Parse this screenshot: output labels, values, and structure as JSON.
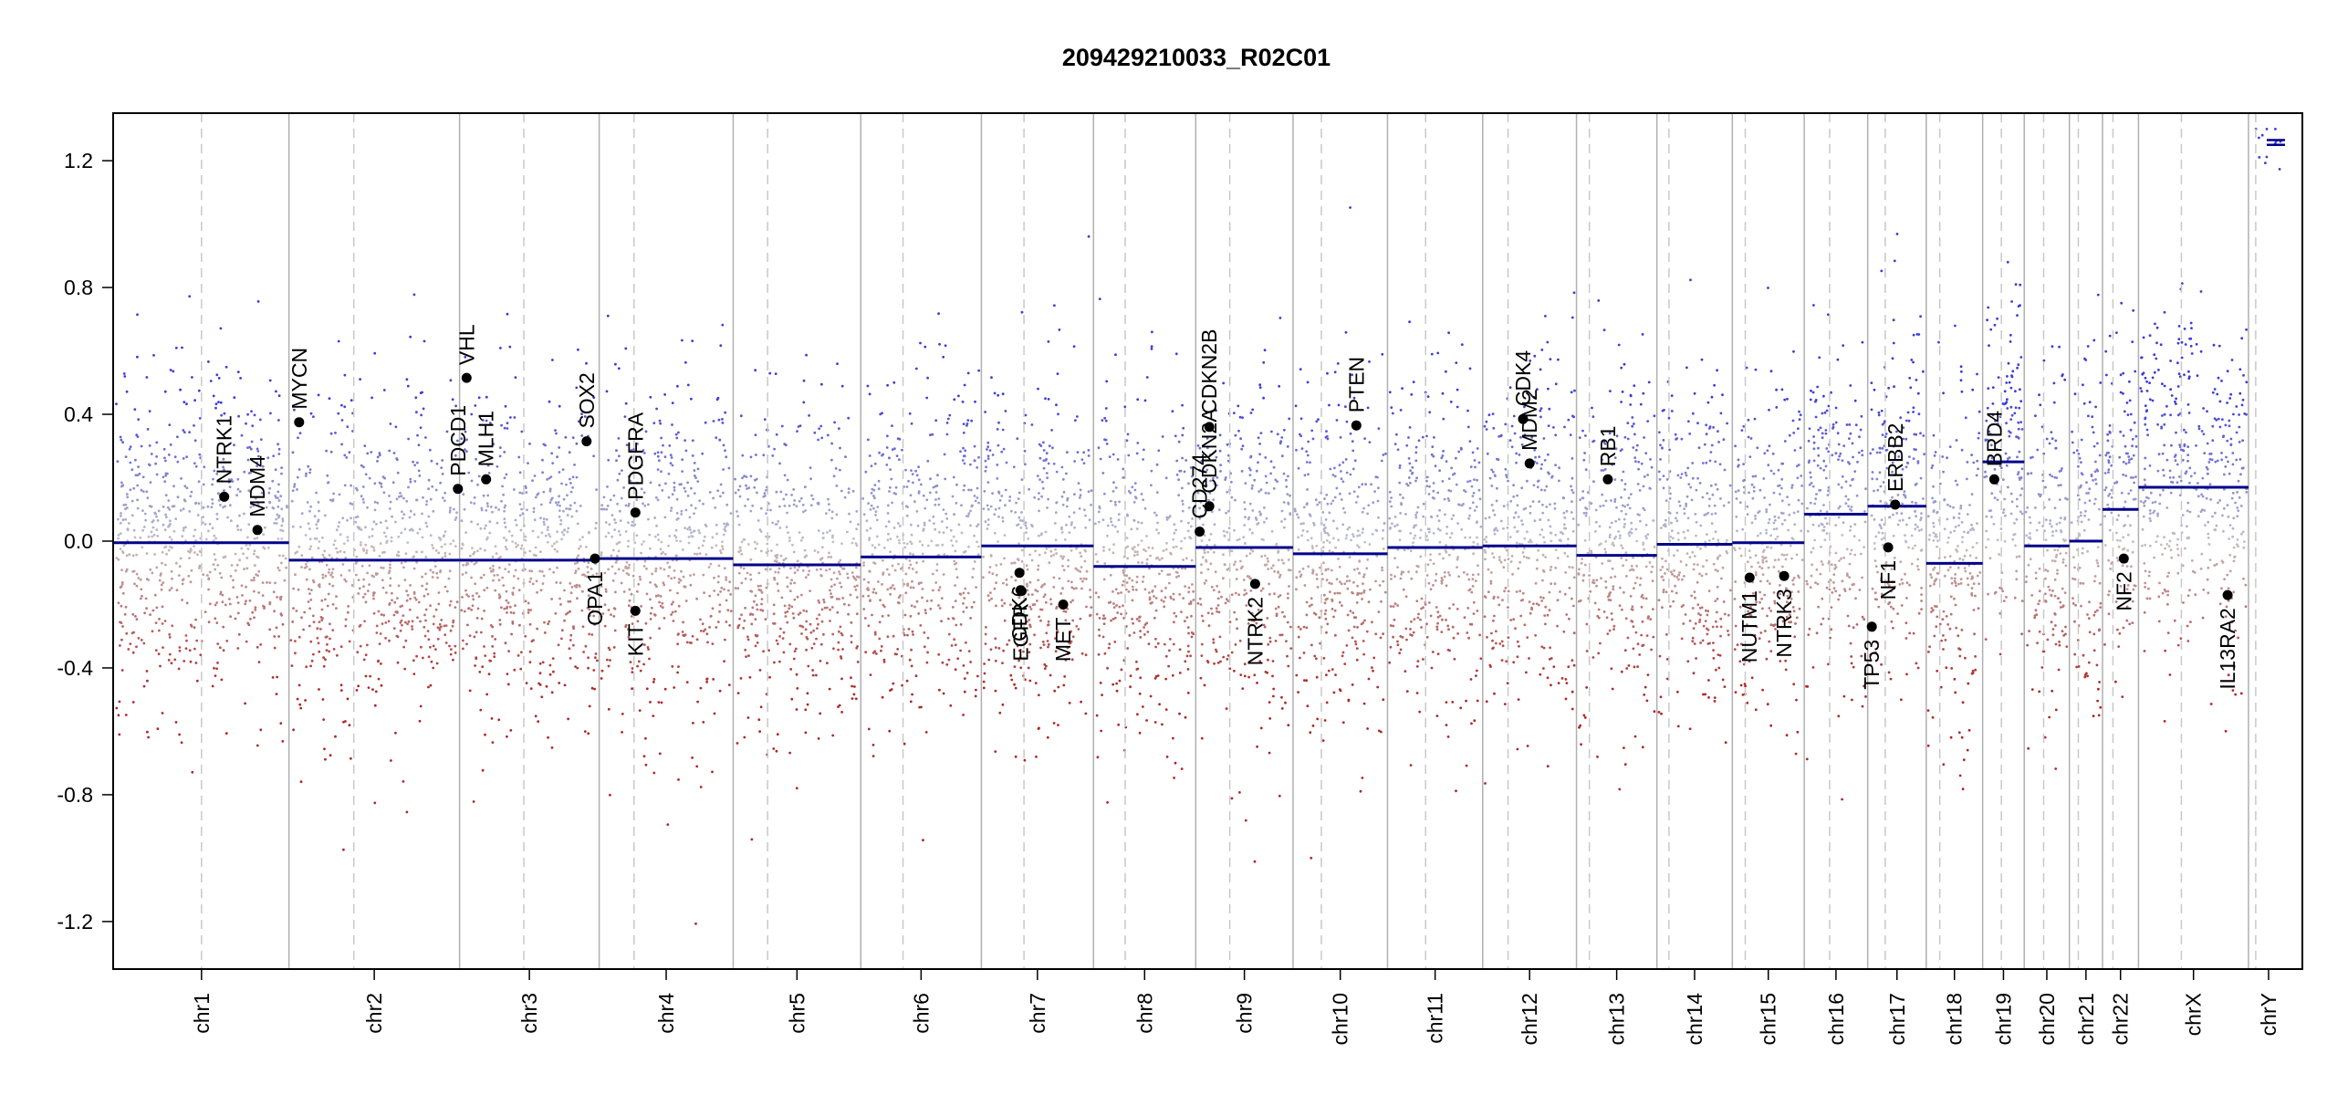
{
  "chart_data": {
    "type": "scatter",
    "title": "209429210033_R02C01",
    "xlabel": "",
    "ylabel": "",
    "ylim": [
      -1.35,
      1.35
    ],
    "yticks": [
      "1.2",
      "0.8",
      "0.4",
      "0.0",
      "-0.4",
      "-0.8",
      "-1.2"
    ],
    "ytick_values": [
      1.2,
      0.8,
      0.4,
      0.0,
      -0.4,
      -0.8,
      -1.2
    ],
    "grid": false,
    "legend": "none",
    "colors": {
      "gain": "#3b3bd4",
      "loss": "#b22222",
      "neutral": "#aaaaaa",
      "segment": "#00008b",
      "boundary": "#aaaaaa",
      "gene": "#000000"
    },
    "chromosomes": [
      {
        "name": "chr1",
        "length": 248,
        "centromere": 0.5,
        "segment": -0.005
      },
      {
        "name": "chr2",
        "length": 242,
        "centromere": 0.38,
        "segment": -0.06
      },
      {
        "name": "chr3",
        "length": 198,
        "centromere": 0.46,
        "segment": -0.06
      },
      {
        "name": "chr4",
        "length": 190,
        "centromere": 0.26,
        "segment": -0.055
      },
      {
        "name": "chr5",
        "length": 181,
        "centromere": 0.27,
        "segment": -0.075
      },
      {
        "name": "chr6",
        "length": 171,
        "centromere": 0.35,
        "segment": -0.05
      },
      {
        "name": "chr7",
        "length": 159,
        "centromere": 0.38,
        "segment": -0.015
      },
      {
        "name": "chr8",
        "length": 145,
        "centromere": 0.31,
        "segment": -0.08
      },
      {
        "name": "chr9",
        "length": 138,
        "centromere": 0.35,
        "segment": -0.02
      },
      {
        "name": "chr10",
        "length": 134,
        "centromere": 0.3,
        "segment": -0.04
      },
      {
        "name": "chr11",
        "length": 135,
        "centromere": 0.4,
        "segment": -0.02
      },
      {
        "name": "chr12",
        "length": 133,
        "centromere": 0.27,
        "segment": -0.015
      },
      {
        "name": "chr13",
        "length": 114,
        "centromere": 0.16,
        "segment": -0.045
      },
      {
        "name": "chr14",
        "length": 107,
        "centromere": 0.16,
        "segment": -0.01
      },
      {
        "name": "chr15",
        "length": 102,
        "centromere": 0.18,
        "segment": -0.005
      },
      {
        "name": "chr16",
        "length": 90,
        "centromere": 0.4,
        "segment": 0.085
      },
      {
        "name": "chr17",
        "length": 83,
        "centromere": 0.3,
        "segment": 0.11
      },
      {
        "name": "chr18",
        "length": 80,
        "centromere": 0.24,
        "segment": -0.07
      },
      {
        "name": "chr19",
        "length": 59,
        "centromere": 0.45,
        "segment": 0.25
      },
      {
        "name": "chr20",
        "length": 64,
        "centromere": 0.43,
        "segment": -0.015
      },
      {
        "name": "chr21",
        "length": 47,
        "centromere": 0.27,
        "segment": 0.0
      },
      {
        "name": "chr22",
        "length": 51,
        "centromere": 0.29,
        "segment": 0.1
      },
      {
        "name": "chrX",
        "length": 156,
        "centromere": 0.39,
        "segment": 0.17
      },
      {
        "name": "chrY",
        "length": 57,
        "centromere": 0.18,
        "segment": 1.26
      }
    ],
    "genes": [
      {
        "name": "NTRK1",
        "chr": "chr1",
        "pos": 0.63,
        "value": 0.14,
        "label": "above"
      },
      {
        "name": "MDM4",
        "chr": "chr1",
        "pos": 0.82,
        "value": 0.035,
        "label": "above"
      },
      {
        "name": "MYCN",
        "chr": "chr2",
        "pos": 0.06,
        "value": 0.375,
        "label": "above"
      },
      {
        "name": "PDCD1",
        "chr": "chr2",
        "pos": 0.99,
        "value": 0.165,
        "label": "above"
      },
      {
        "name": "VHL",
        "chr": "chr3",
        "pos": 0.05,
        "value": 0.515,
        "label": "above"
      },
      {
        "name": "MLH1",
        "chr": "chr3",
        "pos": 0.19,
        "value": 0.195,
        "label": "above"
      },
      {
        "name": "SOX2",
        "chr": "chr3",
        "pos": 0.91,
        "value": 0.315,
        "label": "above"
      },
      {
        "name": "OPA1",
        "chr": "chr3",
        "pos": 0.97,
        "value": -0.055,
        "label": "below"
      },
      {
        "name": "PDGFRA",
        "chr": "chr4",
        "pos": 0.27,
        "value": 0.09,
        "label": "above"
      },
      {
        "name": "KIT",
        "chr": "chr4",
        "pos": 0.27,
        "value": -0.22,
        "label": "below"
      },
      {
        "name": "EGFR",
        "chr": "chr7",
        "pos": 0.35,
        "value": -0.155,
        "label": "below"
      },
      {
        "name": "CDK6",
        "chr": "chr7",
        "pos": 0.34,
        "value": -0.1,
        "label": "below"
      },
      {
        "name": "MET",
        "chr": "chr7",
        "pos": 0.73,
        "value": -0.2,
        "label": "below"
      },
      {
        "name": "CD274",
        "chr": "chr9",
        "pos": 0.04,
        "value": 0.03,
        "label": "above"
      },
      {
        "name": "CDKN2A",
        "chr": "chr9",
        "pos": 0.14,
        "value": 0.11,
        "label": "above"
      },
      {
        "name": "CDKN2B",
        "chr": "chr9",
        "pos": 0.14,
        "value": 0.36,
        "label": "above"
      },
      {
        "name": "NTRK2",
        "chr": "chr9",
        "pos": 0.61,
        "value": -0.135,
        "label": "below"
      },
      {
        "name": "PTEN",
        "chr": "chr10",
        "pos": 0.67,
        "value": 0.365,
        "label": "above"
      },
      {
        "name": "CDK4",
        "chr": "chr12",
        "pos": 0.43,
        "value": 0.385,
        "label": "above"
      },
      {
        "name": "MDM2",
        "chr": "chr12",
        "pos": 0.5,
        "value": 0.245,
        "label": "above"
      },
      {
        "name": "RB1",
        "chr": "chr13",
        "pos": 0.39,
        "value": 0.195,
        "label": "above"
      },
      {
        "name": "NUTM1",
        "chr": "chr15",
        "pos": 0.24,
        "value": -0.115,
        "label": "below"
      },
      {
        "name": "NTRK3",
        "chr": "chr15",
        "pos": 0.72,
        "value": -0.11,
        "label": "below"
      },
      {
        "name": "TP53",
        "chr": "chr17",
        "pos": 0.07,
        "value": -0.27,
        "label": "below"
      },
      {
        "name": "NF1",
        "chr": "chr17",
        "pos": 0.35,
        "value": -0.02,
        "label": "below"
      },
      {
        "name": "ERBB2",
        "chr": "chr17",
        "pos": 0.47,
        "value": 0.115,
        "label": "above"
      },
      {
        "name": "BRD4",
        "chr": "chr19",
        "pos": 0.28,
        "value": 0.195,
        "label": "above"
      },
      {
        "name": "NF2",
        "chr": "chr22",
        "pos": 0.59,
        "value": -0.055,
        "label": "below"
      },
      {
        "name": "IL13RA2",
        "chr": "chrX",
        "pos": 0.81,
        "value": -0.17,
        "label": "below"
      }
    ]
  }
}
